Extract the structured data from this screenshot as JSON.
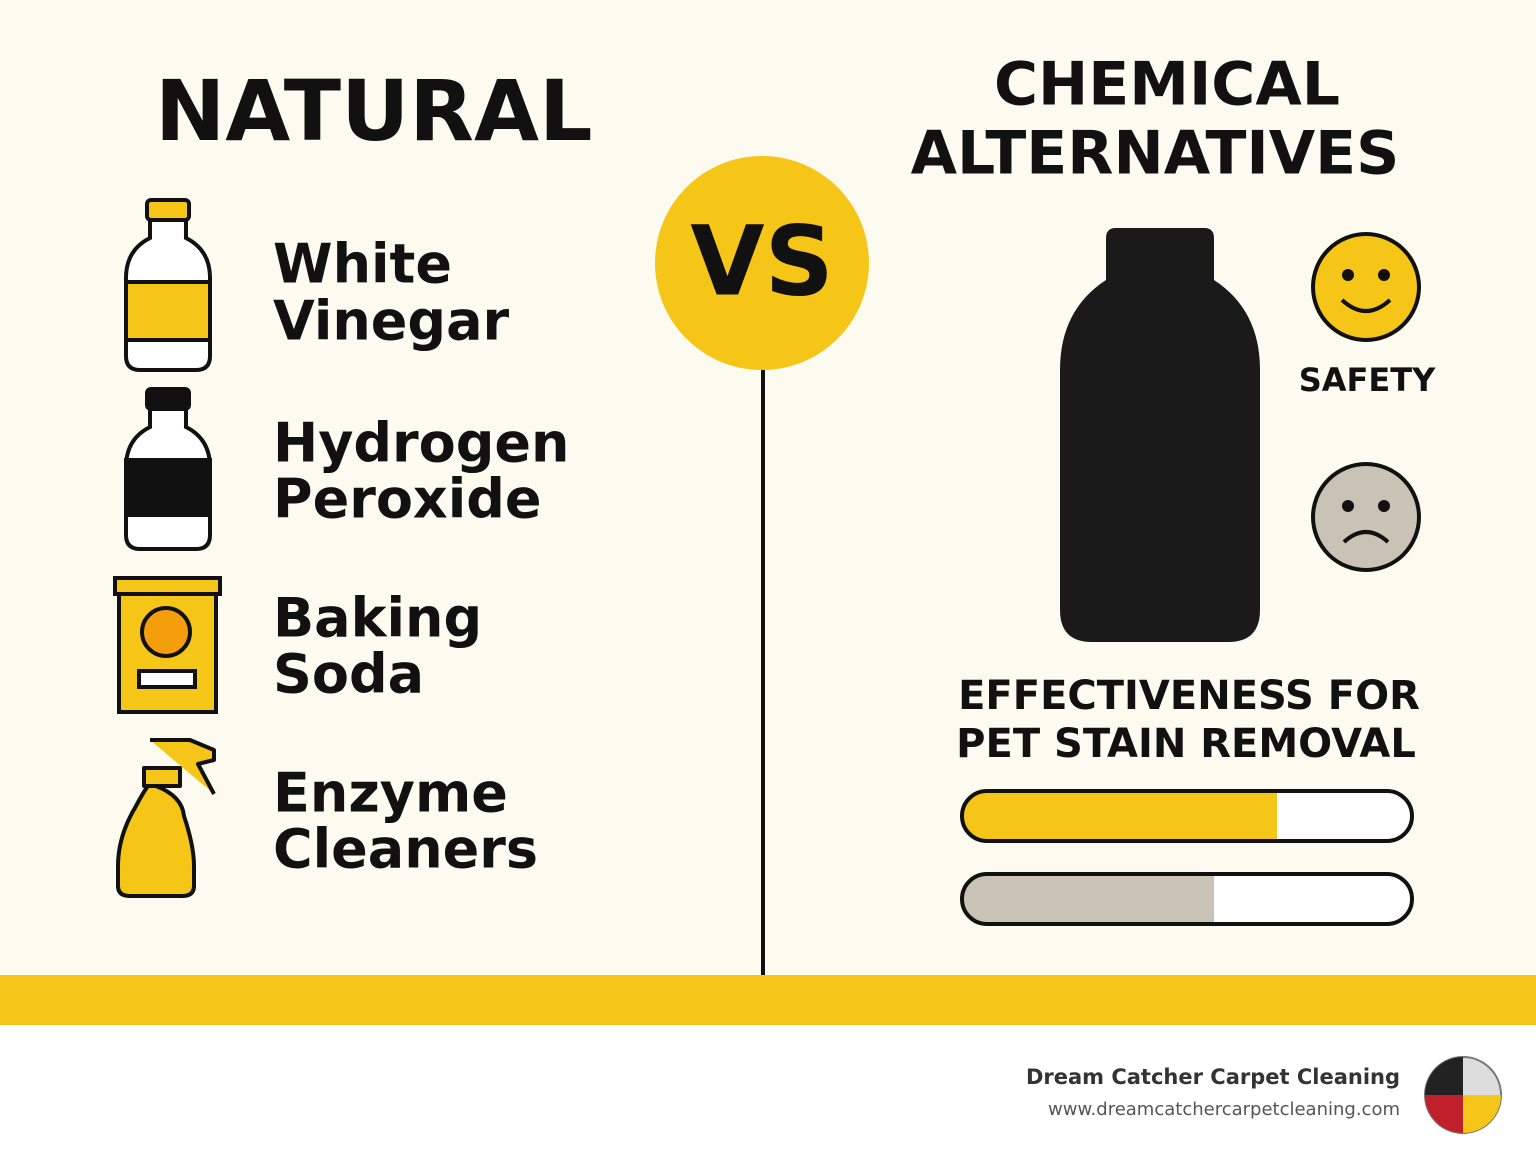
{
  "left": {
    "title": "NATURAL",
    "items": [
      {
        "lines": [
          "White",
          "Vinegar"
        ]
      },
      {
        "lines": [
          "Hydrogen",
          "Peroxide"
        ]
      },
      {
        "lines": [
          "Baking",
          "Soda"
        ]
      },
      {
        "lines": [
          "Enzyme",
          "Cleaners"
        ]
      }
    ]
  },
  "vs": "VS",
  "right": {
    "title_lines": [
      "CHEMICAL",
      "ALTERNATIVES"
    ],
    "safety_label": "SAFETY",
    "effectiveness": {
      "title_lines": [
        "EFFECTIVENESS FOR",
        "PET STAIN REMOVAL"
      ],
      "xlim": [
        0,
        100
      ],
      "bars": [
        {
          "color": "#f5c518",
          "value": 70
        },
        {
          "color": "#c9c3b5",
          "value": 56
        }
      ]
    }
  },
  "footer": {
    "company": "Dream Catcher Carpet Cleaning",
    "url": "www.dreamcatchercarpetcleaning.com"
  }
}
